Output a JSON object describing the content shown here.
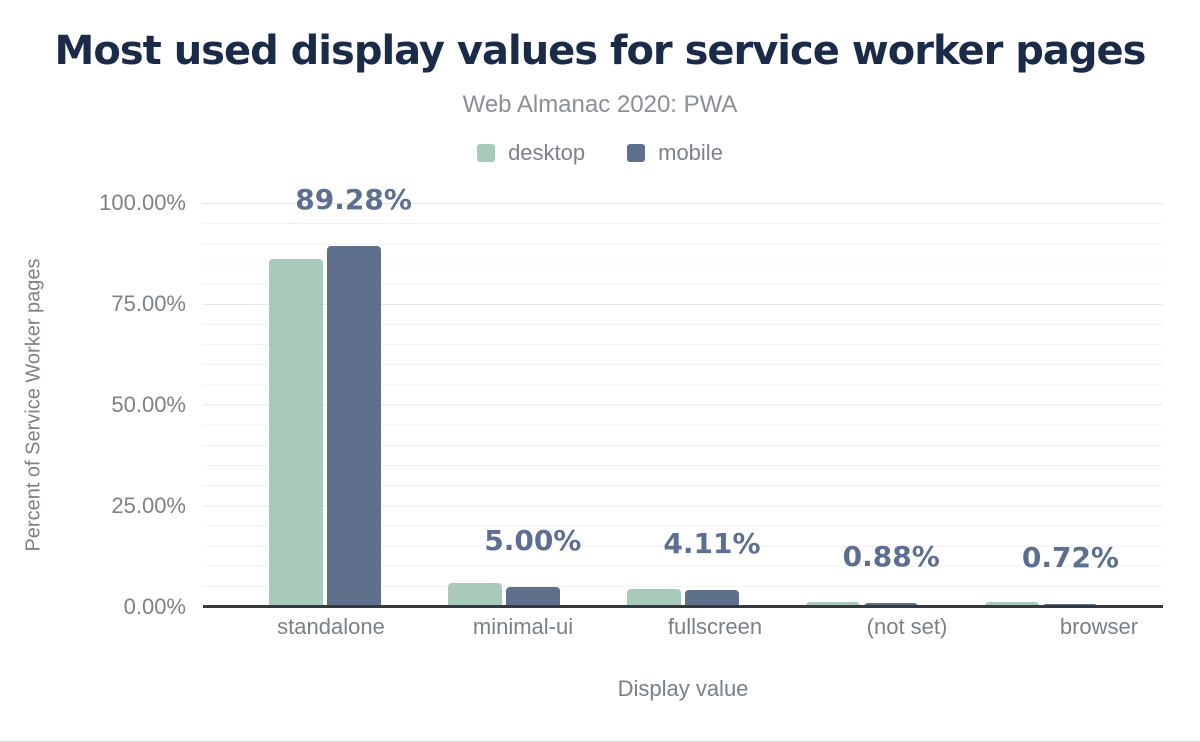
{
  "title": "Most used display values for service worker pages",
  "subtitle": "Web Almanac 2020: PWA",
  "legend": [
    {
      "label": "desktop",
      "color": "#a7cabb"
    },
    {
      "label": "mobile",
      "color": "#5f708c"
    }
  ],
  "colors": {
    "title_text": "#1a2b49",
    "subtitle_text": "#8a8f96",
    "axis_text": "#7d8287",
    "value_label_text": "#5c6e91",
    "axis_line": "#36393d",
    "gridline_major": "#e7e7e7",
    "gridline_minor": "#f3f3f3"
  },
  "chart_data": {
    "type": "bar",
    "title": "Most used display values for service worker pages",
    "subtitle": "Web Almanac 2020: PWA",
    "xlabel": "Display value",
    "ylabel": "Percent of Service Worker pages",
    "ylim": [
      0,
      100
    ],
    "grid": {
      "major_step_pct": 25,
      "minor_step_pct": 5
    },
    "legend_position": "top",
    "categories": [
      "standalone",
      "minimal-ui",
      "fullscreen",
      "(not set)",
      "browser"
    ],
    "series": [
      {
        "name": "desktop",
        "color": "#a7cabb",
        "values": [
          86.1,
          5.9,
          4.5,
          1.2,
          1.2
        ]
      },
      {
        "name": "mobile",
        "color": "#5f708c",
        "values": [
          89.28,
          5.0,
          4.11,
          0.88,
          0.72
        ]
      }
    ],
    "bar_labels": [
      "89.28%",
      "5.00%",
      "4.11%",
      "0.88%",
      "0.72%"
    ],
    "bar_labels_series": "mobile",
    "yticks": {
      "labels": [
        "0.00%",
        "25.00%",
        "50.00%",
        "75.00%",
        "100.00%"
      ],
      "values": [
        0,
        25,
        50,
        75,
        100
      ]
    }
  }
}
